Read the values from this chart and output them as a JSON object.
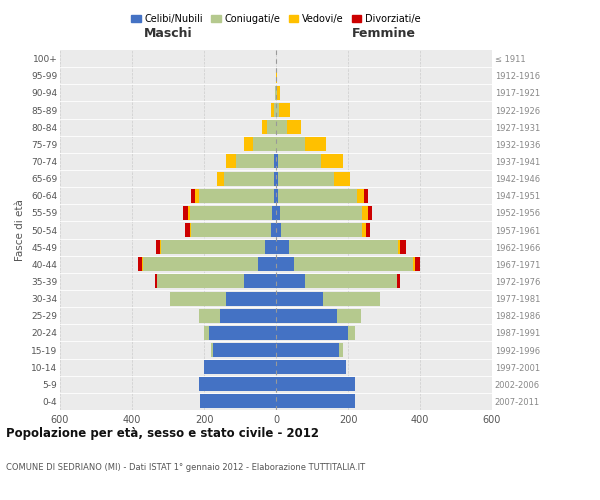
{
  "age_groups": [
    "0-4",
    "5-9",
    "10-14",
    "15-19",
    "20-24",
    "25-29",
    "30-34",
    "35-39",
    "40-44",
    "45-49",
    "50-54",
    "55-59",
    "60-64",
    "65-69",
    "70-74",
    "75-79",
    "80-84",
    "85-89",
    "90-94",
    "95-99",
    "100+"
  ],
  "birth_years": [
    "2007-2011",
    "2002-2006",
    "1997-2001",
    "1992-1996",
    "1987-1991",
    "1982-1986",
    "1977-1981",
    "1972-1976",
    "1967-1971",
    "1962-1966",
    "1957-1961",
    "1952-1956",
    "1947-1951",
    "1942-1946",
    "1937-1941",
    "1932-1936",
    "1927-1931",
    "1922-1926",
    "1917-1921",
    "1912-1916",
    "≤ 1911"
  ],
  "male": {
    "celibi": [
      210,
      215,
      200,
      175,
      185,
      155,
      140,
      90,
      50,
      30,
      15,
      10,
      5,
      5,
      5,
      0,
      0,
      0,
      0,
      0,
      0
    ],
    "coniugati": [
      0,
      0,
      0,
      5,
      15,
      60,
      155,
      240,
      320,
      290,
      220,
      230,
      210,
      140,
      105,
      65,
      25,
      5,
      2,
      0,
      0
    ],
    "vedovi": [
      0,
      0,
      0,
      0,
      0,
      0,
      0,
      0,
      2,
      3,
      5,
      5,
      10,
      20,
      30,
      25,
      15,
      10,
      2,
      0,
      0
    ],
    "divorziati": [
      0,
      0,
      0,
      0,
      0,
      0,
      0,
      5,
      10,
      10,
      12,
      12,
      10,
      0,
      0,
      0,
      0,
      0,
      0,
      0,
      0
    ]
  },
  "female": {
    "nubili": [
      220,
      220,
      195,
      175,
      200,
      170,
      130,
      80,
      50,
      35,
      15,
      10,
      5,
      5,
      5,
      0,
      0,
      0,
      0,
      0,
      0
    ],
    "coniugate": [
      0,
      0,
      0,
      10,
      20,
      65,
      160,
      255,
      330,
      305,
      225,
      230,
      220,
      155,
      120,
      80,
      30,
      8,
      2,
      0,
      0
    ],
    "vedove": [
      0,
      0,
      0,
      0,
      0,
      0,
      0,
      0,
      5,
      5,
      10,
      15,
      20,
      45,
      60,
      60,
      40,
      30,
      8,
      2,
      0
    ],
    "divorziate": [
      0,
      0,
      0,
      0,
      0,
      0,
      0,
      10,
      15,
      15,
      12,
      12,
      10,
      0,
      0,
      0,
      0,
      0,
      0,
      0,
      0
    ]
  },
  "colors": {
    "celibi": "#4472c4",
    "coniugati": "#b5c98e",
    "vedovi": "#ffc000",
    "divorziati": "#cc0000"
  },
  "xlim": 600,
  "title": "Popolazione per età, sesso e stato civile - 2012",
  "subtitle": "COMUNE DI SEDRIANO (MI) - Dati ISTAT 1° gennaio 2012 - Elaborazione TUTTITALIA.IT",
  "ylabel_left": "Fasce di età",
  "xlabel_left": "Maschi",
  "xlabel_right": "Femmine",
  "legend_labels": [
    "Celibi/Nubili",
    "Coniugati/e",
    "Vedovi/e",
    "Divorziati/e"
  ],
  "bg_color": "#f0f0f0",
  "plot_bg": "#ebebeb"
}
